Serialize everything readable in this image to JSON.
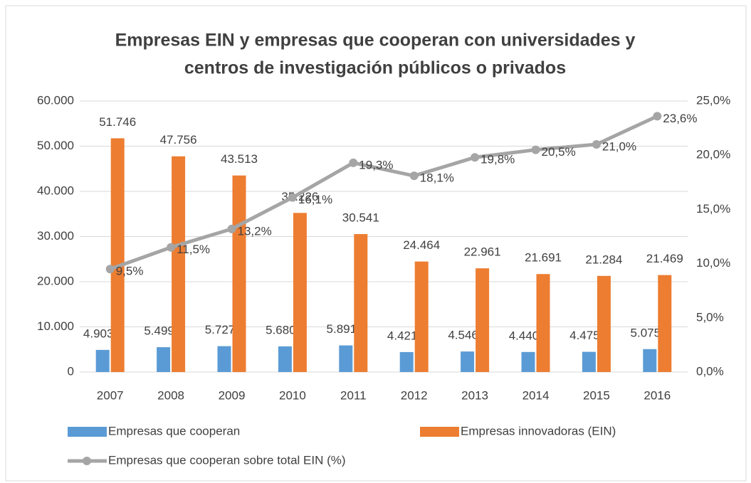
{
  "chart_data": {
    "type": "bar-line",
    "title": [
      "Empresas EIN y empresas que cooperan con universidades y",
      "centros de investigación públicos o privados"
    ],
    "categories": [
      "2007",
      "2008",
      "2009",
      "2010",
      "2011",
      "2012",
      "2013",
      "2014",
      "2015",
      "2016"
    ],
    "series": [
      {
        "name": "Empresas que cooperan",
        "type": "bar",
        "color": "#5b9bd5",
        "values": [
          4903,
          5499,
          5727,
          5680,
          5891,
          4421,
          4546,
          4440,
          4475,
          5075
        ],
        "value_labels": [
          "4.903",
          "5.499",
          "5.727",
          "5.680",
          "5.891",
          "4.421",
          "4.546",
          "4.440",
          "4.475",
          "5.075"
        ]
      },
      {
        "name": "Empresas innovadoras (EIN)",
        "type": "bar",
        "color": "#ed7d31",
        "values": [
          51746,
          47756,
          43513,
          35226,
          30541,
          24464,
          22961,
          21691,
          21284,
          21469
        ],
        "value_labels": [
          "51.746",
          "47.756",
          "43.513",
          "35.226",
          "30.541",
          "24.464",
          "22.961",
          "21.691",
          "21.284",
          "21.469"
        ]
      },
      {
        "name": "Empresas que cooperan sobre total EIN (%)",
        "type": "line",
        "axis": "y2",
        "color": "#a5a5a5",
        "values": [
          9.5,
          11.5,
          13.2,
          16.1,
          19.3,
          18.1,
          19.8,
          20.5,
          21.0,
          23.6
        ],
        "value_labels": [
          "9,5%",
          "11,5%",
          "13,2%",
          "16,1%",
          "19,3%",
          "18,1%",
          "19,8%",
          "20,5%",
          "21,0%",
          "23,6%"
        ]
      }
    ],
    "ylim": [
      0,
      60000
    ],
    "yticks": [
      0,
      {
        "value": 10000,
        "label": "10.000"
      },
      {
        "value": 20000,
        "label": "20.000"
      },
      {
        "value": 30000,
        "label": "30.000"
      },
      {
        "value": 40000,
        "label": "40.000"
      },
      {
        "value": 50000,
        "label": "50.000"
      },
      {
        "value": 60000,
        "label": "60.000"
      }
    ],
    "y2lim": [
      0,
      25
    ],
    "y2ticks": [
      {
        "value": 0,
        "label": "0,0%"
      },
      {
        "value": 5,
        "label": "5,0%"
      },
      {
        "value": 10,
        "label": "10,0%"
      },
      {
        "value": 15,
        "label": "15,0%"
      },
      {
        "value": 20,
        "label": "20,0%"
      },
      {
        "value": 25,
        "label": "25,0%"
      }
    ],
    "grid": true
  }
}
